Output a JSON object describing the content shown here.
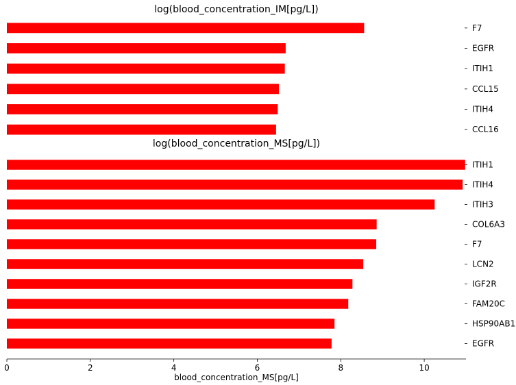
{
  "chart_data": [
    {
      "type": "bar",
      "orientation": "horizontal",
      "title": "log(blood_concentration_IM[pg/L])",
      "categories": [
        "F7",
        "EGFR",
        "ITIH1",
        "CCL15",
        "ITIH4",
        "CCL16"
      ],
      "values": [
        8.56,
        6.68,
        6.66,
        6.52,
        6.49,
        6.45
      ],
      "color": "#ff0000",
      "xlim": [
        0,
        11
      ]
    },
    {
      "type": "bar",
      "orientation": "horizontal",
      "title": "log(blood_concentration_MS[pg/L])",
      "categories": [
        "ITIH1",
        "ITIH4",
        "ITIH3",
        "COL6A3",
        "F7",
        "LCN2",
        "IGF2R",
        "FAM20C",
        "HSP90AB1",
        "EGFR"
      ],
      "values": [
        10.98,
        10.92,
        10.25,
        8.86,
        8.85,
        8.54,
        8.28,
        8.18,
        7.85,
        7.78
      ],
      "color": "#ff0000",
      "xlim": [
        0,
        11
      ],
      "xticks": [
        "0",
        "2",
        "4",
        "6",
        "8",
        "10"
      ],
      "xlabel": "blood_concentration_MS[pg/L]"
    }
  ]
}
